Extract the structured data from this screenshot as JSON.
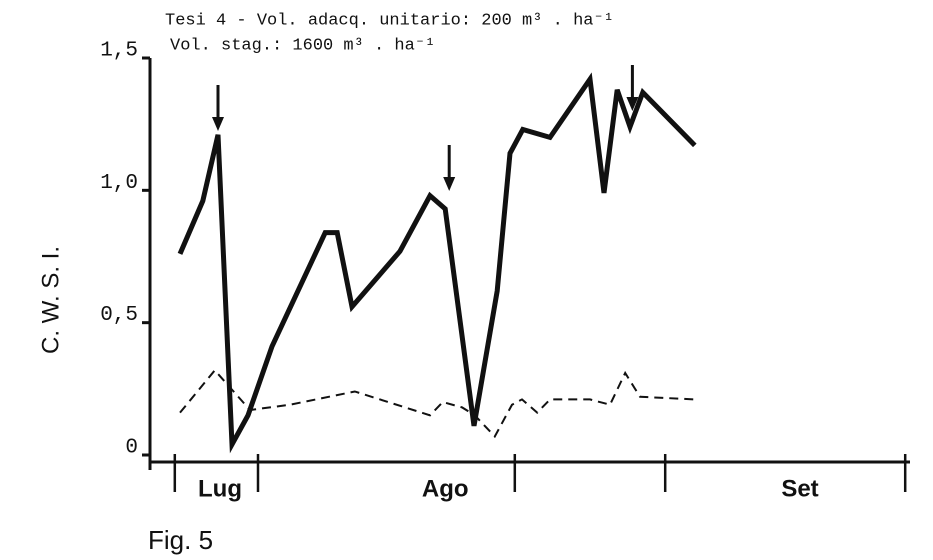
{
  "chart_data": {
    "type": "line",
    "title": "Tesi 4 - Vol. adacq. unitario: 200 m³ . ha⁻¹",
    "subtitle": "Vol. stag.: 1600 m³ . ha⁻¹",
    "y_label": "C. W. S. I.",
    "caption": "Fig. 5",
    "xlim": [
      0,
      95
    ],
    "ylim": [
      0,
      1.5
    ],
    "yticks": [
      {
        "value": 0,
        "label": "0"
      },
      {
        "value": 0.5,
        "label": "0,5"
      },
      {
        "value": 1.0,
        "label": "1,0"
      },
      {
        "value": 1.5,
        "label": "1,5"
      }
    ],
    "xticks": [
      {
        "value": 8.75,
        "label": "Lug"
      },
      {
        "value": 36.9,
        "label": "Ago"
      },
      {
        "value": 81.25,
        "label": "Set"
      }
    ],
    "xminor": [
      3.1,
      13.5,
      45.6,
      64.4,
      94.4
    ],
    "arrows": [
      8.5,
      37.4,
      60.3
    ],
    "series": [
      {
        "style": "solid",
        "color": "#111111",
        "x": [
          3.75,
          6.6,
          8.5,
          10.25,
          12.25,
          15.25,
          21.9,
          23.4,
          25.25,
          31.25,
          35,
          36.9,
          40.5,
          43.4,
          45,
          46.6,
          50,
          55,
          56.75,
          58.4,
          60,
          61.6,
          68.1
        ],
        "values": [
          0.76,
          0.96,
          1.21,
          0.04,
          0.15,
          0.41,
          0.84,
          0.84,
          0.56,
          0.77,
          0.98,
          0.93,
          0.11,
          0.62,
          1.14,
          1.23,
          1.2,
          1.42,
          0.99,
          1.38,
          1.24,
          1.37,
          1.17
        ]
      },
      {
        "style": "dashed",
        "color": "#111111",
        "x": [
          3.75,
          8.1,
          12.5,
          17.5,
          25.6,
          35,
          36.6,
          39,
          40.6,
          43.1,
          45.25,
          46.5,
          48.4,
          50,
          55,
          57.5,
          59.4,
          61.25,
          68.1
        ],
        "values": [
          0.16,
          0.32,
          0.17,
          0.19,
          0.24,
          0.15,
          0.2,
          0.18,
          0.15,
          0.07,
          0.19,
          0.21,
          0.16,
          0.21,
          0.21,
          0.19,
          0.31,
          0.22,
          0.21
        ]
      }
    ]
  }
}
